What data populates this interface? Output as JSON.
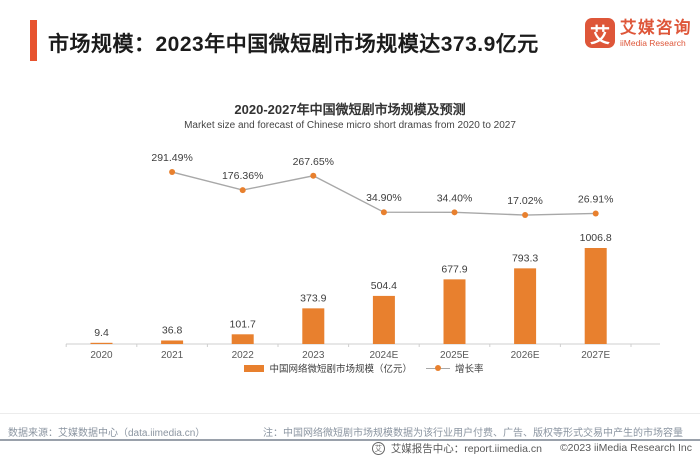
{
  "header": {
    "title": "市场规模：2023年中国微短剧市场规模达373.9亿元",
    "logo": {
      "mark": "艾",
      "name_cn": "艾媒咨询",
      "name_en": "iiMedia Research"
    }
  },
  "chart_data": {
    "type": "bar",
    "title": "2020-2027年中国微短剧市场规模及预测",
    "subtitle": "Market size and forecast of Chinese micro short dramas from 2020 to 2027",
    "categories": [
      "2020",
      "2021",
      "2022",
      "2023",
      "2024E",
      "2025E",
      "2026E",
      "2027E"
    ],
    "series": [
      {
        "name": "中国网络微短剧市场规模（亿元）",
        "type": "bar",
        "values": [
          9.4,
          36.8,
          101.7,
          373.9,
          504.4,
          677.9,
          793.3,
          1006.8
        ],
        "labels": [
          "9.4",
          "36.8",
          "101.7",
          "373.9",
          "504.4",
          "677.9",
          "793.3",
          "1006.8"
        ],
        "color": "#E8802E"
      },
      {
        "name": "增长率",
        "type": "line",
        "unit": "%",
        "values": [
          null,
          291.49,
          176.36,
          267.65,
          34.9,
          34.4,
          17.02,
          26.91
        ],
        "labels": [
          "",
          "291.49%",
          "176.36%",
          "267.65%",
          "34.90%",
          "34.40%",
          "17.02%",
          "26.91%"
        ],
        "line_color": "#A8A8A8",
        "dot_color": "#E8802E"
      }
    ],
    "xlabel": "",
    "ylabel": "",
    "bar_axis_range": [
      0,
      1050
    ],
    "line_axis_visible": false,
    "grid": false,
    "legend_position": "bottom"
  },
  "footnotes": {
    "source": "数据来源：艾媒数据中心（data.iimedia.cn）",
    "note": "注：中国网络微短剧市场规模数据为该行业用户付费、广告、版权等形式交易中产生的市场容量"
  },
  "bottom_bar": {
    "icon_glyph": "艾",
    "report_center": "艾媒报告中心：report.iimedia.cn",
    "copyright": "©2023  iiMedia Research Inc"
  },
  "colors": {
    "accent": "#E7532F",
    "logo": "#DE5639",
    "bar": "#E8802E",
    "line": "#A8A8A8",
    "footnote_text": "#8B95A1",
    "divider": "#9AA1AB"
  }
}
